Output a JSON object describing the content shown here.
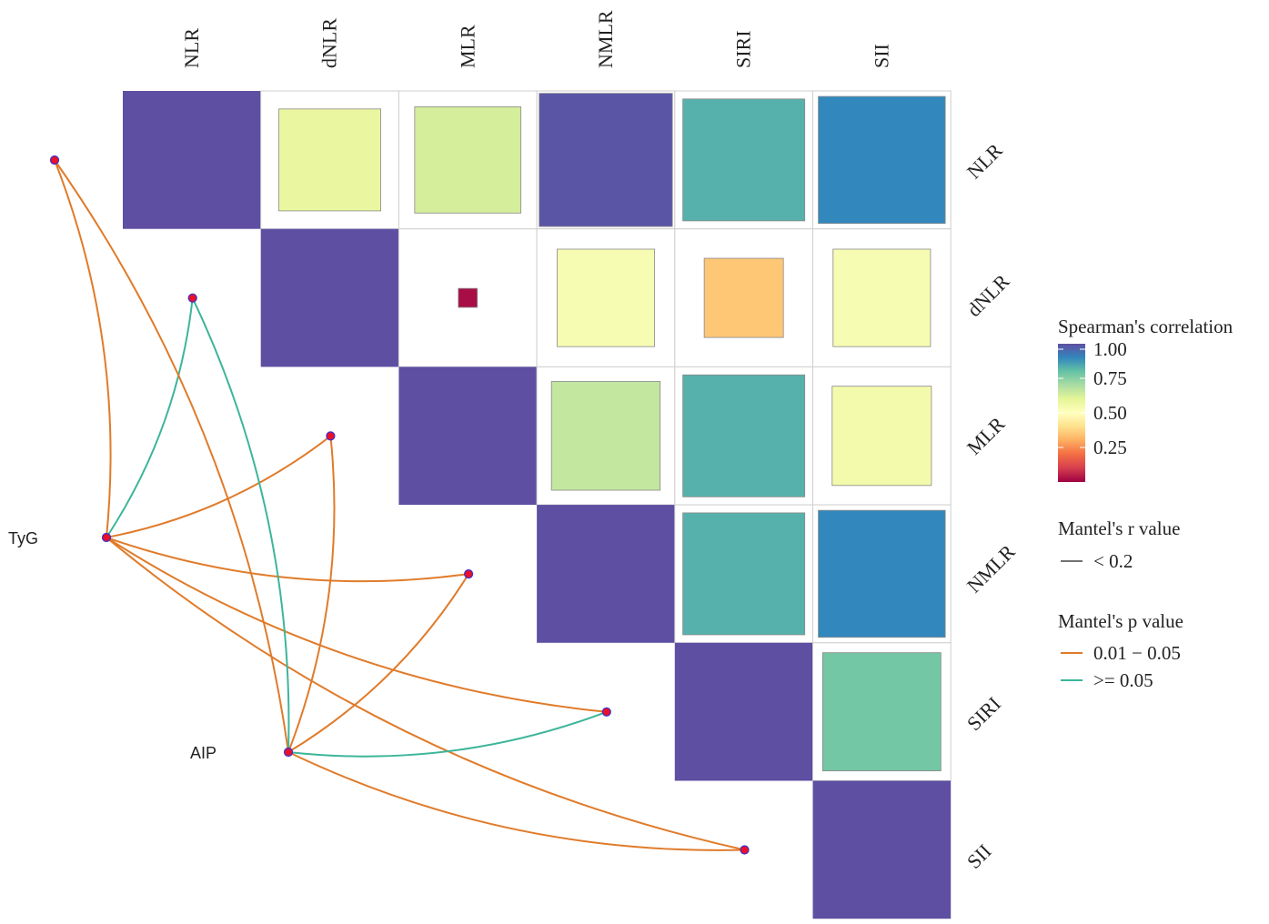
{
  "chart_data": {
    "type": "heatmap",
    "subtype": "correlation-matrix-with-mantel-network",
    "variables": [
      "NLR",
      "dNLR",
      "MLR",
      "NMLR",
      "SIRI",
      "SII"
    ],
    "matrix_shape": "upper-triangle",
    "correlation": [
      [
        1.0,
        0.58,
        0.63,
        0.99,
        0.83,
        0.9
      ],
      [
        null,
        1.0,
        0.02,
        0.53,
        0.35,
        0.53
      ],
      [
        null,
        null,
        1.0,
        0.66,
        0.83,
        0.55
      ],
      [
        null,
        null,
        null,
        1.0,
        0.83,
        0.9
      ],
      [
        null,
        null,
        null,
        null,
        1.0,
        0.78
      ],
      [
        null,
        null,
        null,
        null,
        null,
        1.0
      ]
    ],
    "mantel_sources": [
      "TyG",
      "AIP"
    ],
    "mantel_links": [
      {
        "from": "TyG",
        "to": "NLR",
        "r": "< 0.2",
        "p": "0.01 - 0.05"
      },
      {
        "from": "TyG",
        "to": "dNLR",
        "r": "< 0.2",
        "p": ">= 0.05"
      },
      {
        "from": "TyG",
        "to": "MLR",
        "r": "< 0.2",
        "p": "0.01 - 0.05"
      },
      {
        "from": "TyG",
        "to": "NMLR",
        "r": "< 0.2",
        "p": "0.01 - 0.05"
      },
      {
        "from": "TyG",
        "to": "SIRI",
        "r": "< 0.2",
        "p": "0.01 - 0.05"
      },
      {
        "from": "TyG",
        "to": "SII",
        "r": "< 0.2",
        "p": "0.01 - 0.05"
      },
      {
        "from": "AIP",
        "to": "NLR",
        "r": "< 0.2",
        "p": "0.01 - 0.05"
      },
      {
        "from": "AIP",
        "to": "dNLR",
        "r": "< 0.2",
        "p": ">= 0.05"
      },
      {
        "from": "AIP",
        "to": "MLR",
        "r": "< 0.2",
        "p": "0.01 - 0.05"
      },
      {
        "from": "AIP",
        "to": "NMLR",
        "r": "< 0.2",
        "p": "0.01 - 0.05"
      },
      {
        "from": "AIP",
        "to": "SIRI",
        "r": "< 0.2",
        "p": ">= 0.05"
      },
      {
        "from": "AIP",
        "to": "SII",
        "r": "< 0.2",
        "p": "0.01 - 0.05"
      }
    ],
    "legend": {
      "color_title": "Spearman's correlation",
      "color_ticks": [
        "1.00",
        "0.75",
        "0.50",
        "0.25"
      ],
      "color_range": [
        0,
        1
      ],
      "palette": [
        "#9E0142",
        "#D53E4F",
        "#F46D43",
        "#FDAE61",
        "#FEE08B",
        "#FFFFBF",
        "#E6F598",
        "#ABDDA4",
        "#66C2A5",
        "#3288BD",
        "#5E4FA2"
      ],
      "r_title": "Mantel's r value",
      "r_items": [
        {
          "label": "< 0.2",
          "color": "#444444"
        }
      ],
      "p_title": "Mantel's p value",
      "p_items": [
        {
          "label": "0.01 − 0.05",
          "color": "#E07B2A"
        },
        {
          "label": ">= 0.05",
          "color": "#3DB59A"
        }
      ],
      "placement": "right"
    }
  }
}
